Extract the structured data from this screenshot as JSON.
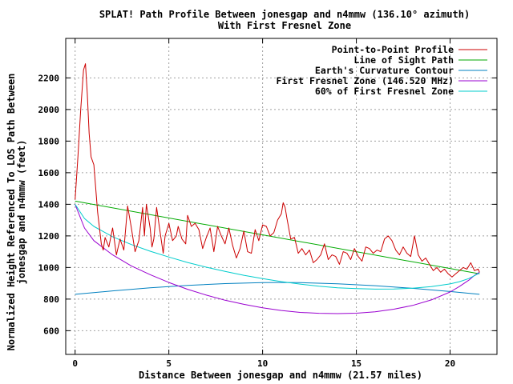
{
  "chart_data": {
    "type": "line",
    "title": "SPLAT! Path Profile Between jonesgap and n4mmw (136.10° azimuth)",
    "subtitle": "With First Fresnel Zone",
    "xlabel": "Distance Between jonesgap and n4mmw (21.57 miles)",
    "ylabel_line1": "Normalized Height Referenced To LOS Path Between",
    "ylabel_line2": "jonesgap and n4mmw (feet)",
    "xlim": [
      -0.5,
      22.5
    ],
    "ylim": [
      450,
      2450
    ],
    "xticks": [
      0,
      5,
      10,
      15,
      20
    ],
    "yticks": [
      600,
      800,
      1000,
      1200,
      1400,
      1600,
      1800,
      2000,
      2200
    ],
    "grid": true,
    "legend_position": "top-right",
    "series": [
      {
        "name": "Point-to-Point Profile",
        "color": "#cc0000",
        "x": [
          0,
          0.15,
          0.3,
          0.45,
          0.55,
          0.65,
          0.75,
          0.85,
          1.0,
          1.2,
          1.4,
          1.5,
          1.6,
          1.8,
          2.0,
          2.2,
          2.4,
          2.6,
          2.8,
          3.0,
          3.2,
          3.4,
          3.6,
          3.7,
          3.8,
          4.0,
          4.1,
          4.2,
          4.35,
          4.5,
          4.7,
          4.8,
          5.0,
          5.2,
          5.4,
          5.5,
          5.7,
          5.9,
          6.0,
          6.2,
          6.4,
          6.6,
          6.8,
          7.0,
          7.2,
          7.4,
          7.6,
          7.8,
          8.0,
          8.2,
          8.4,
          8.6,
          8.8,
          9.0,
          9.2,
          9.4,
          9.6,
          9.8,
          10.0,
          10.2,
          10.4,
          10.6,
          10.8,
          11.0,
          11.1,
          11.2,
          11.3,
          11.5,
          11.7,
          11.9,
          12.1,
          12.3,
          12.5,
          12.7,
          12.9,
          13.1,
          13.3,
          13.5,
          13.7,
          13.9,
          14.1,
          14.3,
          14.5,
          14.7,
          14.9,
          15.1,
          15.3,
          15.5,
          15.7,
          15.9,
          16.1,
          16.3,
          16.5,
          16.7,
          16.9,
          17.1,
          17.3,
          17.5,
          17.7,
          17.9,
          18.1,
          18.3,
          18.5,
          18.7,
          18.9,
          19.1,
          19.3,
          19.5,
          19.7,
          19.9,
          20.1,
          20.3,
          20.5,
          20.7,
          20.9,
          21.1,
          21.3,
          21.5,
          21.57
        ],
        "values": [
          1430,
          1700,
          2000,
          2250,
          2290,
          2100,
          1850,
          1700,
          1650,
          1350,
          1150,
          1110,
          1190,
          1130,
          1250,
          1080,
          1180,
          1110,
          1390,
          1250,
          1100,
          1170,
          1380,
          1200,
          1400,
          1250,
          1130,
          1180,
          1380,
          1250,
          1090,
          1200,
          1280,
          1170,
          1200,
          1260,
          1180,
          1150,
          1330,
          1260,
          1280,
          1240,
          1120,
          1190,
          1250,
          1100,
          1260,
          1200,
          1150,
          1250,
          1140,
          1060,
          1120,
          1230,
          1100,
          1090,
          1240,
          1170,
          1270,
          1260,
          1200,
          1220,
          1300,
          1340,
          1410,
          1380,
          1310,
          1180,
          1190,
          1090,
          1120,
          1080,
          1110,
          1030,
          1050,
          1080,
          1150,
          1050,
          1080,
          1070,
          1020,
          1100,
          1090,
          1050,
          1120,
          1070,
          1040,
          1130,
          1120,
          1090,
          1110,
          1100,
          1180,
          1200,
          1170,
          1110,
          1080,
          1130,
          1090,
          1070,
          1200,
          1080,
          1040,
          1060,
          1020,
          980,
          1000,
          970,
          990,
          960,
          940,
          960,
          980,
          1000,
          990,
          1030,
          980,
          990,
          970
        ],
        "label_key": "legend_0"
      },
      {
        "name": "Line of Sight Path",
        "color": "#00aa00",
        "x": [
          0,
          21.57
        ],
        "values": [
          1420,
          960
        ],
        "label_key": "legend_1"
      },
      {
        "name": "Earth's Curvature Contour",
        "color": "#0080c0",
        "x": [
          0,
          2,
          4,
          6,
          8,
          10,
          10.8,
          12,
          14,
          16,
          18,
          20,
          21.57
        ],
        "values": [
          830,
          852,
          872,
          887,
          898,
          904,
          905,
          904,
          897,
          885,
          868,
          848,
          830
        ],
        "label_key": "legend_2"
      },
      {
        "name": "First Fresnel Zone (146.520 MHz)",
        "color": "#9a00d0",
        "x": [
          0,
          0.5,
          1,
          2,
          3,
          4,
          5,
          6,
          7,
          8,
          9,
          10,
          11,
          12,
          13,
          14,
          15,
          16,
          17,
          18,
          19,
          20,
          20.5,
          21,
          21.3,
          21.57
        ],
        "values": [
          1400,
          1250,
          1170,
          1080,
          1010,
          955,
          905,
          862,
          825,
          793,
          767,
          745,
          728,
          716,
          710,
          708,
          711,
          720,
          736,
          760,
          795,
          845,
          880,
          920,
          950,
          970
        ],
        "label_key": "legend_3"
      },
      {
        "name": "60% of First Fresnel Zone",
        "color": "#00cccc",
        "x": [
          0,
          0.5,
          1,
          2,
          3,
          4,
          5,
          6,
          7,
          8,
          9,
          10,
          11,
          12,
          13,
          14,
          15,
          16,
          17,
          18,
          19,
          20,
          20.5,
          21,
          21.3,
          21.57
        ],
        "values": [
          1400,
          1310,
          1260,
          1195,
          1145,
          1103,
          1066,
          1032,
          1002,
          975,
          951,
          930,
          911,
          895,
          882,
          872,
          866,
          863,
          864,
          869,
          879,
          896,
          910,
          930,
          948,
          965
        ],
        "label_key": "legend_4"
      }
    ],
    "legend": {
      "legend_0": "Point-to-Point Profile",
      "legend_1": "Line of Sight Path",
      "legend_2": "Earth's Curvature Contour",
      "legend_3": "First Fresnel Zone (146.520 MHz)",
      "legend_4": "60% of First Fresnel Zone"
    }
  }
}
